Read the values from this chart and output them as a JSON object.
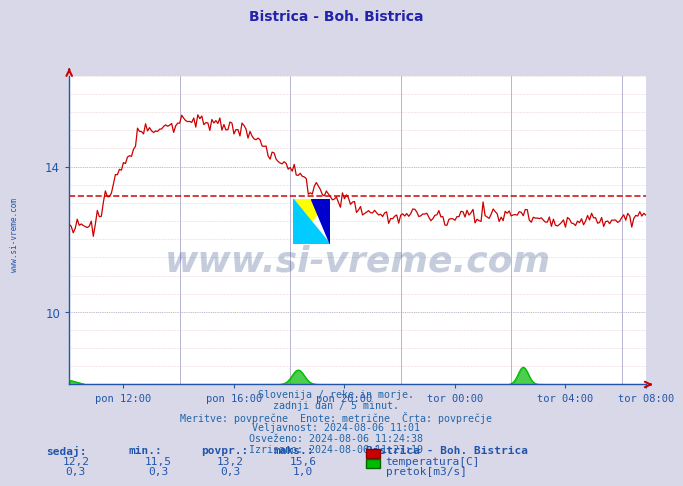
{
  "title": "Bistrica - Boh. Bistrica",
  "title_color": "#2222aa",
  "bg_color": "#d8d8e8",
  "plot_bg_color": "#ffffff",
  "grid_color_v": "#aaaacc",
  "grid_color_h_minor": "#cc99aa",
  "grid_color_h_major": "#aaaacc",
  "temp_color": "#cc0000",
  "flow_color": "#00bb00",
  "avg_line_color": "#cc0000",
  "avg_line_value": 13.2,
  "xlabel_color": "#2255aa",
  "ylabel_color": "#2255aa",
  "xtick_labels": [
    "pon 12:00",
    "pon 16:00",
    "pon 20:00",
    "tor 00:00",
    "tor 04:00",
    "tor 08:00"
  ],
  "watermark_text": "www.si-vreme.com",
  "watermark_color": "#1a3a7a",
  "watermark_alpha": 0.25,
  "sidebar_text": "www.si-vreme.com",
  "sidebar_color": "#2255aa",
  "info_lines": [
    "Slovenija / reke in morje.",
    "zadnji dan / 5 minut.",
    "Meritve: povprečne  Enote: metrične  Črta: povprečje",
    "Veljavnost: 2024-08-06 11:01",
    "Osveženo: 2024-08-06 11:24:38",
    "Izrisano: 2024-08-06 11:27:19"
  ],
  "table_headers": [
    "sedaj:",
    "min.:",
    "povpr.:",
    "maks.:"
  ],
  "table_row1": [
    "12,2",
    "11,5",
    "13,2",
    "15,6"
  ],
  "table_row2": [
    "0,3",
    "0,3",
    "0,3",
    "1,0"
  ],
  "legend_station": "Bistrica - Boh. Bistrica",
  "legend_temp": "temperatura[C]",
  "legend_flow": "pretok[m3/s]",
  "n_points": 288,
  "ymin": 8.0,
  "ymax": 16.5,
  "ytick_vals": [
    10,
    14
  ],
  "ytick_labels": [
    "10",
    "14"
  ],
  "flow_display_max": 0.8,
  "temp_avg": 13.2
}
